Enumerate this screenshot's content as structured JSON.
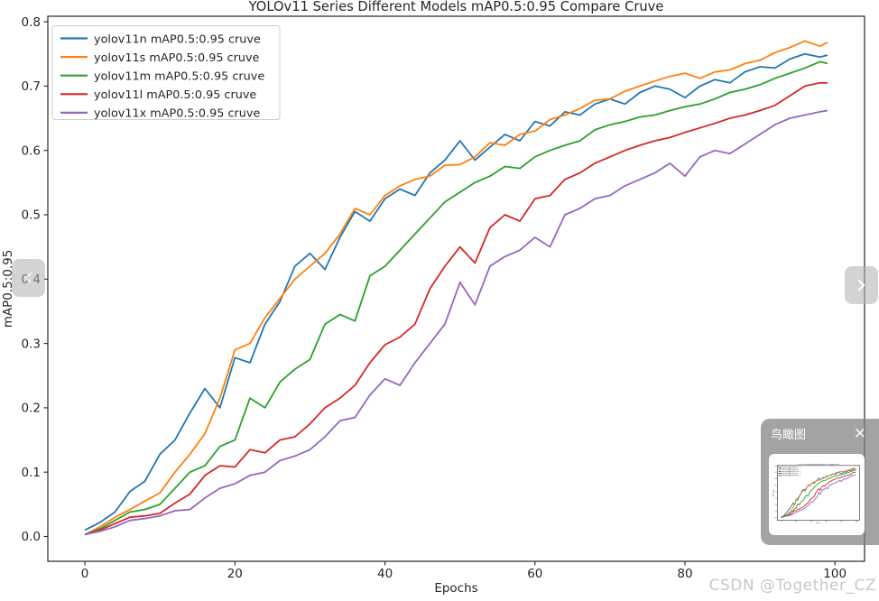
{
  "page": {
    "watermark": "CSDN @Together_CZ"
  },
  "nav": {
    "prev_icon": "‹",
    "next_icon": "›"
  },
  "overlay": {
    "title": "鸟瞰图",
    "close_icon": "×"
  },
  "chart_data": {
    "type": "line",
    "title": "YOLOv11 Series Different Models mAP0.5:0.95 Compare Cruve",
    "xlabel": "Epochs",
    "ylabel": "mAP0.5:0.95",
    "xlim": [
      -4.95,
      103.95
    ],
    "ylim": [
      -0.0385,
      0.8085
    ],
    "xticks": [
      0,
      20,
      40,
      60,
      80,
      100
    ],
    "yticks": [
      0.0,
      0.1,
      0.2,
      0.3,
      0.4,
      0.5,
      0.6,
      0.7,
      0.8
    ],
    "ytick_labels": [
      "0.0",
      "0.1",
      "0.2",
      "0.3",
      "0.4",
      "0.5",
      "0.6",
      "0.7",
      "0.8"
    ],
    "grid": false,
    "legend_position": "upper left",
    "text_color": "#262626",
    "x": [
      0,
      2,
      4,
      6,
      8,
      10,
      12,
      14,
      16,
      18,
      20,
      22,
      24,
      26,
      28,
      30,
      32,
      34,
      36,
      38,
      40,
      42,
      44,
      46,
      48,
      50,
      52,
      54,
      56,
      58,
      60,
      62,
      64,
      66,
      68,
      70,
      72,
      74,
      76,
      78,
      80,
      82,
      84,
      86,
      88,
      90,
      92,
      94,
      96,
      98,
      99
    ],
    "series": [
      {
        "name": "yolov11n mAP0.5:0.95 cruve",
        "color": "#1f77b4",
        "values": [
          0.01,
          0.022,
          0.038,
          0.07,
          0.086,
          0.128,
          0.15,
          0.192,
          0.23,
          0.2,
          0.278,
          0.27,
          0.33,
          0.365,
          0.42,
          0.44,
          0.415,
          0.465,
          0.505,
          0.49,
          0.525,
          0.54,
          0.53,
          0.565,
          0.585,
          0.615,
          0.585,
          0.605,
          0.625,
          0.615,
          0.645,
          0.638,
          0.66,
          0.655,
          0.672,
          0.68,
          0.672,
          0.69,
          0.7,
          0.695,
          0.682,
          0.7,
          0.71,
          0.705,
          0.722,
          0.73,
          0.728,
          0.742,
          0.75,
          0.745,
          0.748
        ]
      },
      {
        "name": "yolov11s mAP0.5:0.95 cruve",
        "color": "#ff7f0e",
        "values": [
          0.003,
          0.015,
          0.03,
          0.042,
          0.055,
          0.068,
          0.1,
          0.128,
          0.16,
          0.215,
          0.29,
          0.3,
          0.34,
          0.37,
          0.4,
          0.42,
          0.44,
          0.47,
          0.51,
          0.5,
          0.53,
          0.545,
          0.555,
          0.56,
          0.577,
          0.578,
          0.59,
          0.612,
          0.608,
          0.625,
          0.63,
          0.648,
          0.655,
          0.665,
          0.678,
          0.68,
          0.692,
          0.7,
          0.708,
          0.715,
          0.72,
          0.712,
          0.722,
          0.725,
          0.735,
          0.74,
          0.752,
          0.76,
          0.77,
          0.762,
          0.768
        ]
      },
      {
        "name": "yolov11m mAP0.5:0.95 cruve",
        "color": "#2ca02c",
        "values": [
          0.003,
          0.012,
          0.025,
          0.038,
          0.042,
          0.05,
          0.075,
          0.1,
          0.11,
          0.14,
          0.15,
          0.215,
          0.2,
          0.24,
          0.26,
          0.275,
          0.33,
          0.345,
          0.335,
          0.405,
          0.42,
          0.445,
          0.47,
          0.495,
          0.52,
          0.535,
          0.55,
          0.56,
          0.575,
          0.572,
          0.59,
          0.6,
          0.608,
          0.615,
          0.632,
          0.64,
          0.645,
          0.652,
          0.655,
          0.662,
          0.668,
          0.672,
          0.68,
          0.69,
          0.695,
          0.702,
          0.712,
          0.72,
          0.728,
          0.738,
          0.735
        ]
      },
      {
        "name": "yolov11l mAP0.5:0.95 cruve",
        "color": "#d62728",
        "values": [
          0.003,
          0.01,
          0.02,
          0.03,
          0.032,
          0.036,
          0.052,
          0.066,
          0.095,
          0.11,
          0.108,
          0.135,
          0.13,
          0.15,
          0.155,
          0.175,
          0.2,
          0.215,
          0.235,
          0.27,
          0.298,
          0.31,
          0.33,
          0.385,
          0.42,
          0.45,
          0.425,
          0.48,
          0.5,
          0.49,
          0.525,
          0.53,
          0.555,
          0.565,
          0.58,
          0.59,
          0.6,
          0.608,
          0.615,
          0.62,
          0.628,
          0.635,
          0.642,
          0.65,
          0.655,
          0.662,
          0.67,
          0.685,
          0.7,
          0.705,
          0.705
        ]
      },
      {
        "name": "yolov11x mAP0.5:0.95 cruve",
        "color": "#9467bd",
        "values": [
          0.003,
          0.008,
          0.015,
          0.025,
          0.028,
          0.032,
          0.04,
          0.042,
          0.06,
          0.075,
          0.082,
          0.095,
          0.1,
          0.118,
          0.125,
          0.135,
          0.155,
          0.18,
          0.185,
          0.22,
          0.245,
          0.235,
          0.27,
          0.3,
          0.33,
          0.395,
          0.36,
          0.42,
          0.435,
          0.445,
          0.465,
          0.45,
          0.5,
          0.51,
          0.525,
          0.53,
          0.545,
          0.555,
          0.565,
          0.58,
          0.56,
          0.59,
          0.6,
          0.595,
          0.61,
          0.625,
          0.64,
          0.65,
          0.655,
          0.66,
          0.662
        ]
      }
    ]
  }
}
